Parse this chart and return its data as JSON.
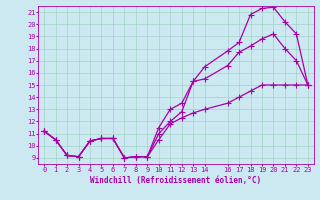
{
  "xlabel": "Windchill (Refroidissement éolien,°C)",
  "bg_color": "#cce8f0",
  "line_color": "#aa00aa",
  "xlim": [
    -0.5,
    23.5
  ],
  "ylim": [
    8.5,
    21.5
  ],
  "xticks": [
    0,
    1,
    2,
    3,
    4,
    5,
    6,
    7,
    8,
    9,
    10,
    11,
    12,
    13,
    14,
    16,
    17,
    18,
    19,
    20,
    21,
    22,
    23
  ],
  "yticks": [
    9,
    10,
    11,
    12,
    13,
    14,
    15,
    16,
    17,
    18,
    19,
    20,
    21
  ],
  "line1_x": [
    0,
    1,
    2,
    3,
    4,
    5,
    6,
    7,
    8,
    9,
    10,
    11,
    12,
    13,
    14,
    16,
    17,
    18,
    19,
    20,
    21,
    22,
    23
  ],
  "line1_y": [
    11.2,
    10.5,
    9.2,
    9.1,
    10.4,
    10.6,
    10.6,
    9.0,
    9.1,
    9.1,
    10.5,
    11.8,
    12.3,
    12.7,
    13.0,
    13.5,
    14.0,
    14.5,
    15.0,
    15.0,
    15.0,
    15.0,
    15.0
  ],
  "line2_x": [
    0,
    1,
    2,
    3,
    4,
    5,
    6,
    7,
    8,
    9,
    10,
    11,
    12,
    13,
    14,
    16,
    17,
    18,
    19,
    20,
    21,
    22,
    23
  ],
  "line2_y": [
    11.2,
    10.5,
    9.2,
    9.1,
    10.4,
    10.6,
    10.6,
    9.0,
    9.1,
    9.1,
    11.5,
    13.0,
    13.5,
    15.3,
    16.5,
    17.8,
    18.5,
    20.8,
    21.3,
    21.4,
    20.2,
    19.2,
    15.0
  ],
  "line3_x": [
    0,
    1,
    2,
    3,
    4,
    5,
    6,
    7,
    8,
    9,
    10,
    11,
    12,
    13,
    14,
    16,
    17,
    18,
    19,
    20,
    21,
    22,
    23
  ],
  "line3_y": [
    11.2,
    10.5,
    9.2,
    9.1,
    10.4,
    10.6,
    10.6,
    9.0,
    9.1,
    9.1,
    11.0,
    12.0,
    12.8,
    15.3,
    15.5,
    16.6,
    17.7,
    18.2,
    18.8,
    19.2,
    18.0,
    17.0,
    15.0
  ],
  "marker": "+",
  "marker_size": 4,
  "linewidth": 0.9,
  "grid_color": "#99ccbb",
  "label_fontsize": 5.5,
  "tick_fontsize": 5.0
}
